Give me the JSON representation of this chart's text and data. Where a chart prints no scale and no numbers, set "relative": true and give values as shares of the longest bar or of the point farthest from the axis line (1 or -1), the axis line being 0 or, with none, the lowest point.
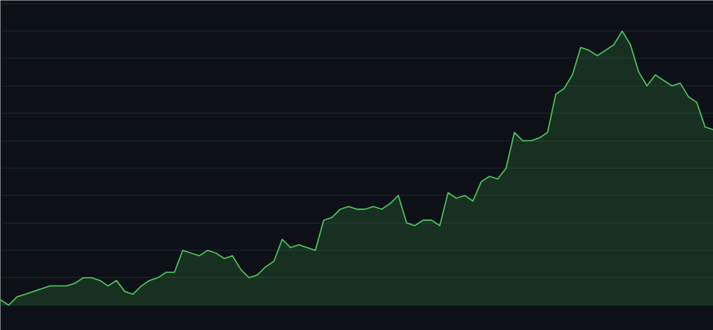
{
  "chart_data": {
    "type": "area",
    "relative": true,
    "grid": "y",
    "categories": [
      null,
      null,
      null,
      null,
      null,
      null,
      null,
      null,
      null,
      null,
      null,
      null,
      null,
      null,
      null,
      null,
      null,
      null,
      null,
      null,
      null,
      null,
      null,
      null,
      null,
      null,
      null,
      null,
      null,
      null,
      null,
      null,
      null,
      null,
      null,
      null,
      null,
      null,
      null,
      null,
      null,
      null,
      null,
      null,
      null,
      null,
      null,
      null,
      null,
      null,
      null,
      null,
      null,
      null,
      null,
      null,
      null,
      null,
      null,
      null,
      null,
      null,
      null,
      null,
      null,
      null,
      null,
      null,
      null,
      null,
      null,
      null,
      null,
      null,
      null,
      null,
      null,
      null,
      null,
      null,
      null,
      null,
      null,
      null,
      null,
      null,
      null
    ],
    "series": [
      {
        "color": "#4cc35a",
        "values": [
          0.02,
          0.0,
          0.03,
          0.04,
          0.05,
          0.06,
          0.07,
          0.07,
          0.07,
          0.08,
          0.1,
          0.1,
          0.09,
          0.07,
          0.09,
          0.05,
          0.04,
          0.07,
          0.09,
          0.1,
          0.12,
          0.12,
          0.2,
          0.19,
          0.18,
          0.2,
          0.19,
          0.17,
          0.18,
          0.13,
          0.1,
          0.11,
          0.14,
          0.16,
          0.24,
          0.21,
          0.22,
          0.21,
          0.2,
          0.31,
          0.32,
          0.35,
          0.36,
          0.35,
          0.35,
          0.36,
          0.35,
          0.37,
          0.4,
          0.3,
          0.29,
          0.31,
          0.31,
          0.29,
          0.41,
          0.39,
          0.4,
          0.38,
          0.45,
          0.47,
          0.46,
          0.5,
          0.63,
          0.6,
          0.6,
          0.61,
          0.63,
          0.77,
          0.79,
          0.84,
          0.94,
          0.93,
          0.91,
          0.93,
          0.95,
          1.0,
          0.95,
          0.85,
          0.8,
          0.84,
          0.82,
          0.8,
          0.81,
          0.76,
          0.74,
          0.65,
          0.64
        ]
      }
    ]
  }
}
